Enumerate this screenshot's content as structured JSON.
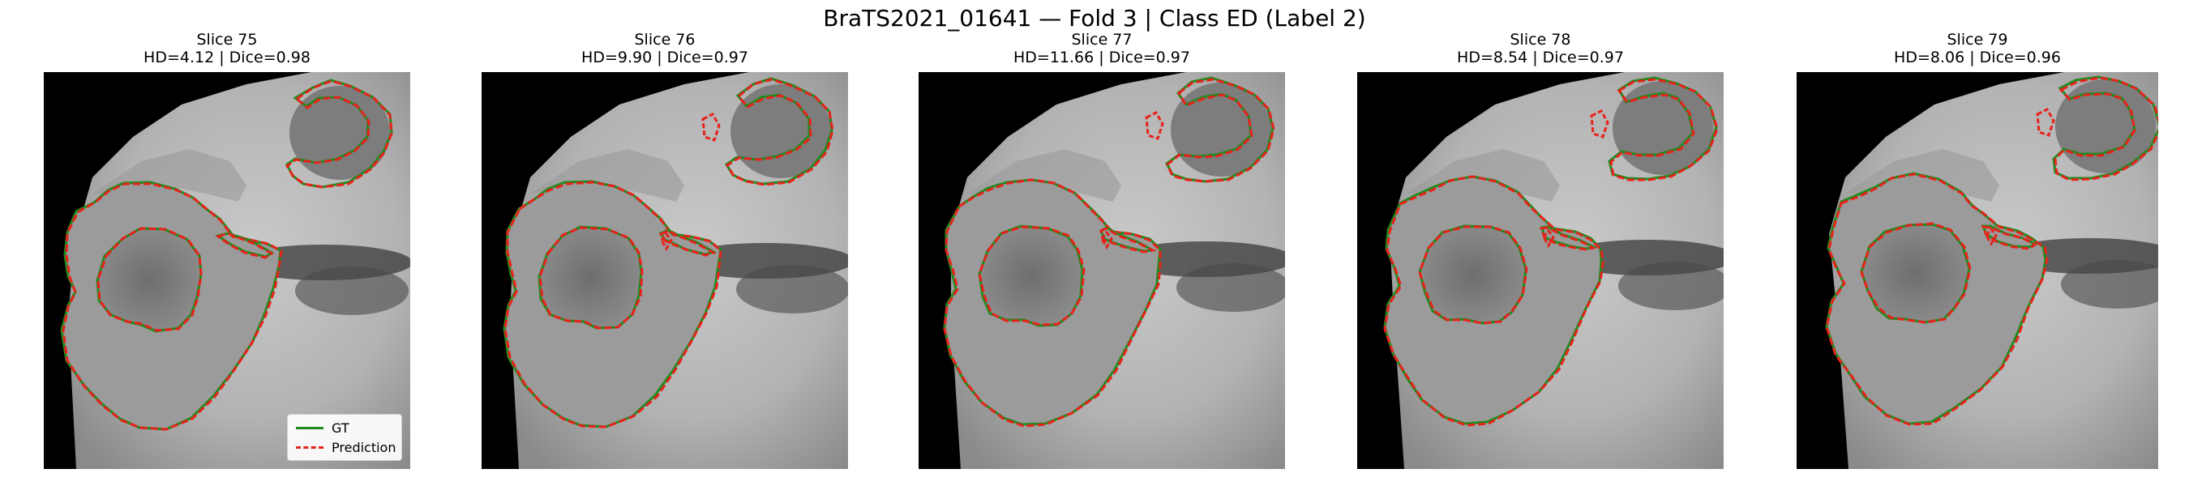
{
  "figure": {
    "title": "BraTS2021_01641 — Fold 3 | Class ED (Label 2)"
  },
  "colors": {
    "ground_truth": "#1e8c1e",
    "prediction": "#e8221b",
    "background": "#000000"
  },
  "panels": [
    {
      "slice_label": "Slice 75",
      "metrics": "HD=4.12 | Dice=0.98"
    },
    {
      "slice_label": "Slice 76",
      "metrics": "HD=9.90 | Dice=0.97"
    },
    {
      "slice_label": "Slice 77",
      "metrics": "HD=11.66 | Dice=0.97"
    },
    {
      "slice_label": "Slice 78",
      "metrics": "HD=8.54 | Dice=0.97"
    },
    {
      "slice_label": "Slice 79",
      "metrics": "HD=8.06 | Dice=0.96"
    }
  ],
  "legend": {
    "gt_label": "GT",
    "prediction_label": "Prediction"
  }
}
